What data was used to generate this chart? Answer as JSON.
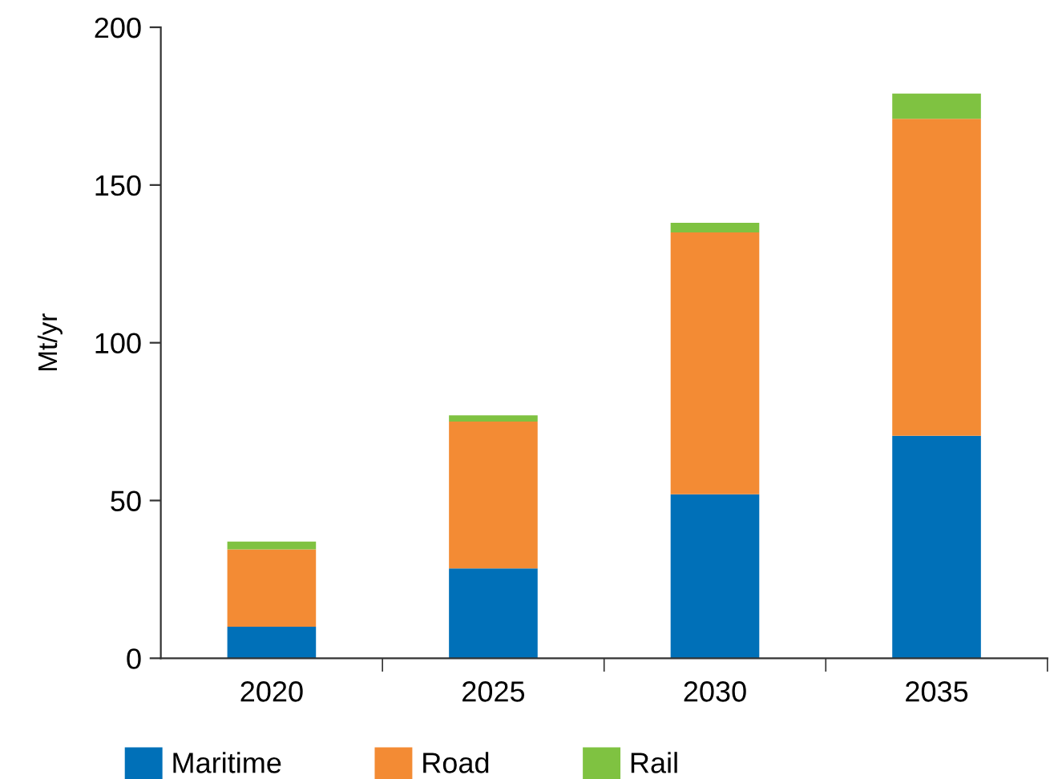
{
  "chart_data": {
    "type": "bar",
    "stacked": true,
    "ylabel": "Mt/yr",
    "categories": [
      "2020",
      "2025",
      "2030",
      "2035"
    ],
    "series": [
      {
        "name": "Maritime",
        "color": "#0070b8",
        "values": [
          10,
          28.5,
          52,
          70.5
        ]
      },
      {
        "name": "Road",
        "color": "#f38b34",
        "values": [
          24.5,
          46.5,
          83,
          100.5
        ]
      },
      {
        "name": "Rail",
        "color": "#7fc241",
        "values": [
          2.5,
          2,
          3,
          8
        ]
      }
    ],
    "ylim": [
      0,
      200
    ],
    "yticks": [
      0,
      50,
      100,
      150,
      200
    ],
    "grid": false,
    "legend": "bottom"
  }
}
